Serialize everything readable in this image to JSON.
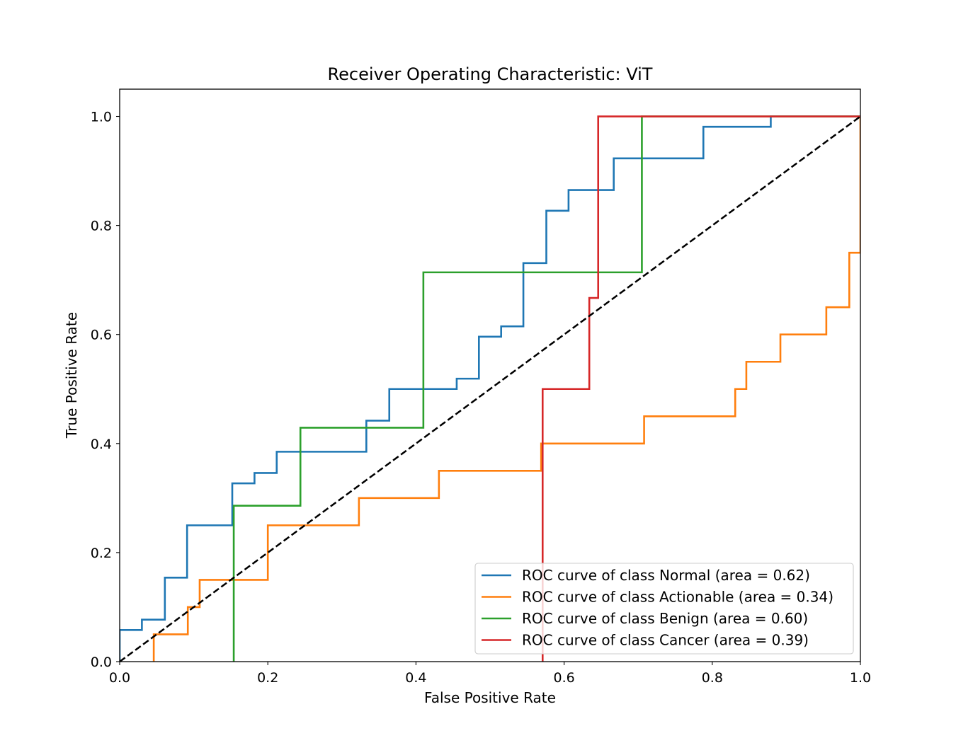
{
  "chart_data": {
    "type": "line",
    "title": "Receiver Operating Characteristic: ViT",
    "xlabel": "False Positive Rate",
    "ylabel": "True Positive Rate",
    "xlim": [
      0.0,
      1.0
    ],
    "ylim": [
      0.0,
      1.05
    ],
    "xticks": [
      "0.0",
      "0.2",
      "0.4",
      "0.6",
      "0.8",
      "1.0"
    ],
    "yticks": [
      "0.0",
      "0.2",
      "0.4",
      "0.6",
      "0.8",
      "1.0"
    ],
    "grid": false,
    "legend_position": "lower-right",
    "series": [
      {
        "name": "ROC curve of class Normal (area = 0.62)",
        "color": "#1f77b4",
        "x": [
          0.0,
          0.0,
          0.03,
          0.03,
          0.061,
          0.061,
          0.091,
          0.091,
          0.152,
          0.152,
          0.182,
          0.182,
          0.212,
          0.212,
          0.333,
          0.333,
          0.364,
          0.364,
          0.455,
          0.455,
          0.485,
          0.485,
          0.515,
          0.515,
          0.545,
          0.545,
          0.576,
          0.576,
          0.606,
          0.606,
          0.667,
          0.667,
          0.788,
          0.788,
          0.879,
          0.879,
          1.0,
          1.0
        ],
        "y": [
          0.0,
          0.058,
          0.058,
          0.077,
          0.077,
          0.154,
          0.154,
          0.25,
          0.25,
          0.327,
          0.327,
          0.346,
          0.346,
          0.385,
          0.385,
          0.442,
          0.442,
          0.5,
          0.5,
          0.519,
          0.519,
          0.596,
          0.596,
          0.615,
          0.615,
          0.731,
          0.731,
          0.827,
          0.827,
          0.865,
          0.865,
          0.923,
          0.923,
          0.981,
          0.981,
          1.0,
          1.0,
          1.0
        ]
      },
      {
        "name": "ROC curve of class Actionable (area = 0.34)",
        "color": "#ff7f0e",
        "x": [
          0.046,
          0.046,
          0.092,
          0.092,
          0.108,
          0.108,
          0.2,
          0.2,
          0.323,
          0.323,
          0.431,
          0.431,
          0.569,
          0.569,
          0.708,
          0.708,
          0.831,
          0.831,
          0.846,
          0.846,
          0.892,
          0.892,
          0.954,
          0.954,
          0.985,
          0.985,
          1.0,
          1.0
        ],
        "y": [
          0.0,
          0.05,
          0.05,
          0.1,
          0.1,
          0.15,
          0.15,
          0.25,
          0.25,
          0.3,
          0.3,
          0.35,
          0.35,
          0.4,
          0.4,
          0.45,
          0.45,
          0.5,
          0.5,
          0.55,
          0.55,
          0.6,
          0.6,
          0.65,
          0.65,
          0.75,
          0.75,
          1.0
        ]
      },
      {
        "name": "ROC curve of class Benign (area = 0.60)",
        "color": "#2ca02c",
        "x": [
          0.154,
          0.154,
          0.244,
          0.244,
          0.41,
          0.41,
          0.705,
          0.705,
          1.0
        ],
        "y": [
          0.0,
          0.286,
          0.286,
          0.429,
          0.429,
          0.714,
          0.714,
          1.0,
          1.0
        ]
      },
      {
        "name": "ROC curve of class Cancer (area = 0.39)",
        "color": "#d62728",
        "x": [
          0.571,
          0.571,
          0.634,
          0.634,
          0.646,
          0.646,
          1.0
        ],
        "y": [
          0.0,
          0.5,
          0.5,
          0.667,
          0.667,
          1.0,
          1.0
        ]
      }
    ],
    "reference_line": {
      "color": "#000000",
      "dashed": true,
      "x": [
        0.0,
        1.0
      ],
      "y": [
        0.0,
        1.0
      ]
    }
  }
}
